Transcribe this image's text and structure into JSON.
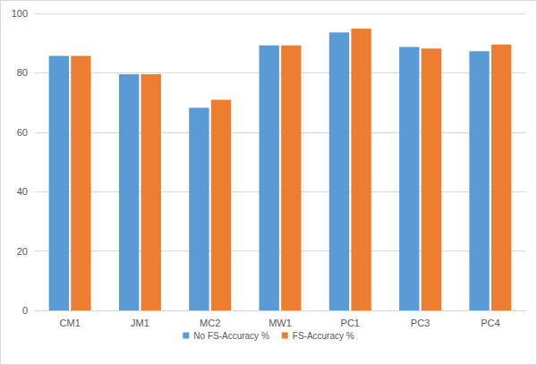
{
  "chart_data": {
    "type": "bar",
    "categories": [
      "CM1",
      "JM1",
      "MC2",
      "MW1",
      "PC1",
      "PC3",
      "PC4"
    ],
    "series": [
      {
        "name": "No FS-Accuracy %",
        "color": "#5b9bd5",
        "values": [
          85.7,
          79.5,
          68.2,
          89.2,
          93.6,
          88.7,
          87.3
        ]
      },
      {
        "name": "FS-Accuracy %",
        "color": "#ed7d31",
        "values": [
          85.7,
          79.5,
          70.9,
          89.2,
          94.9,
          88.2,
          89.5
        ]
      }
    ],
    "ylim": [
      0,
      100
    ],
    "yticks": [
      0,
      20,
      40,
      60,
      80,
      100
    ],
    "grid": true,
    "legend": "bottom"
  }
}
